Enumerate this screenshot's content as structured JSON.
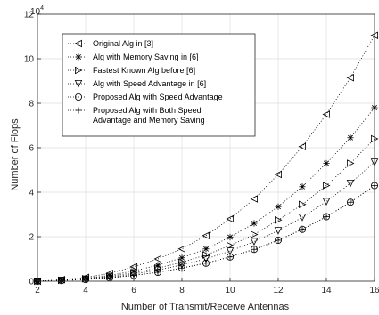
{
  "chart_data": {
    "type": "line",
    "xlabel": "Number of Transmit/Receive Antennas",
    "ylabel": "Number of Flops",
    "y_multiplier_base": "10",
    "y_multiplier_exp": "4",
    "xlim": [
      2,
      16
    ],
    "ylim": [
      0,
      120000
    ],
    "x_ticks": [
      2,
      4,
      6,
      8,
      10,
      12,
      14,
      16
    ],
    "y_ticks": [
      0,
      20000,
      40000,
      60000,
      80000,
      100000,
      120000
    ],
    "y_tick_labels": [
      "0",
      "2",
      "4",
      "6",
      "8",
      "10",
      "12"
    ],
    "grid": true,
    "legend_position": "top-left",
    "x": [
      2,
      3,
      4,
      5,
      6,
      7,
      8,
      9,
      10,
      11,
      12,
      13,
      14,
      15,
      16
    ],
    "series": [
      {
        "name": "Original Alg in [3]",
        "marker": "triangle-left",
        "values": [
          0,
          700,
          1700,
          3500,
          6500,
          10000,
          14500,
          20500,
          28000,
          37000,
          48000,
          60500,
          75000,
          91500,
          110500
        ]
      },
      {
        "name": "Alg with Memory Saving in [6]",
        "marker": "asterisk",
        "values": [
          0,
          500,
          1300,
          2600,
          4600,
          7200,
          10500,
          14500,
          19800,
          26000,
          33500,
          42500,
          53000,
          64500,
          78000
        ]
      },
      {
        "name": "Fastest Known Alg before [6]",
        "marker": "triangle-right",
        "values": [
          0,
          420,
          1100,
          2200,
          3800,
          5900,
          8500,
          11800,
          16000,
          21000,
          27500,
          34500,
          43000,
          53000,
          64000
        ]
      },
      {
        "name": "Alg with Speed Advantage in [6]",
        "marker": "triangle-down",
        "values": [
          0,
          350,
          900,
          1800,
          3200,
          5000,
          7300,
          10000,
          13500,
          17800,
          22700,
          28700,
          35800,
          44000,
          53500
        ]
      },
      {
        "name": "Proposed Alg with Speed Advantage",
        "marker": "circle",
        "values": [
          0,
          300,
          750,
          1500,
          2600,
          4000,
          5900,
          8100,
          10900,
          14300,
          18400,
          23300,
          29000,
          35500,
          43000
        ]
      },
      {
        "name": "Proposed Alg with Both Speed Advantage and Memory Saving",
        "name_lines": [
          "Proposed Alg with Both Speed",
          "Advantage and Memory Saving"
        ],
        "marker": "plus",
        "values": [
          0,
          300,
          750,
          1500,
          2600,
          4000,
          5900,
          8100,
          10900,
          14300,
          18400,
          23300,
          29000,
          35500,
          43000
        ]
      }
    ]
  }
}
